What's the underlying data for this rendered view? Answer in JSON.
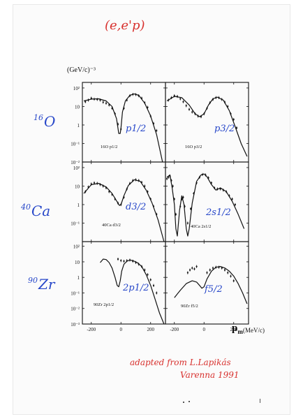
{
  "annotations": {
    "title": "(e,e'p)",
    "y_units": "(GeV/c)⁻³",
    "x_units": "(MeV/c)",
    "pm_label": "p",
    "pm_sub": "m",
    "credit_line1": "adapted from L.Lapikás",
    "credit_line2": "Varenna 1991",
    "nuclei": [
      {
        "mass": "16",
        "symbol": "O"
      },
      {
        "mass": "40",
        "symbol": "Ca"
      },
      {
        "mass": "90",
        "symbol": "Zr"
      }
    ],
    "colors": {
      "red": "#d8322f",
      "blue": "#2747c9",
      "ink": "#111111"
    }
  },
  "chart_data": [
    {
      "type": "line",
      "panel": "row1-left",
      "state_label": "16O p1/2",
      "hand_label": "p1/2",
      "yscale": "log",
      "ylim_exp": [
        -2,
        2
      ],
      "ytick_labels": [
        "10²",
        "10",
        "1",
        "10⁻¹",
        "10⁻²"
      ],
      "xlim": [
        -260,
        300
      ],
      "xticks": [
        -200,
        0,
        200
      ],
      "xtick_labels": [],
      "curve": {
        "x": [
          -250,
          -200,
          -150,
          -100,
          -60,
          -30,
          -15,
          -5,
          0,
          10,
          30,
          60,
          90,
          120,
          160,
          200,
          240,
          280
        ],
        "y": [
          20,
          25,
          26,
          20,
          10,
          2.2,
          0.35,
          0.35,
          0.7,
          5,
          20,
          40,
          48,
          40,
          15,
          3,
          0.3,
          0.01
        ]
      },
      "points": {
        "x": [
          -240,
          -220,
          -200,
          -180,
          -160,
          -140,
          -120,
          -100,
          -80,
          -60,
          -40,
          -20,
          0,
          20,
          40,
          60,
          80,
          100,
          120,
          140,
          160,
          180,
          200,
          220,
          240
        ],
        "y": [
          18,
          22,
          28,
          25,
          24,
          22,
          17,
          15,
          12,
          8,
          4,
          1.1,
          0.6,
          8,
          22,
          38,
          45,
          44,
          38,
          28,
          16,
          9,
          3,
          1.2,
          0.5
        ]
      }
    },
    {
      "type": "line",
      "panel": "row1-right",
      "state_label": "16O p3/2",
      "hand_label": "p3/2",
      "yscale": "log",
      "ylim_exp": [
        -2,
        2
      ],
      "ytick_labels": [],
      "xlim": [
        -260,
        300
      ],
      "xticks": [
        -200,
        0,
        200
      ],
      "xtick_labels": [],
      "curve": {
        "x": [
          -250,
          -200,
          -150,
          -100,
          -60,
          -30,
          0,
          30,
          60,
          90,
          130,
          170,
          210,
          250,
          290
        ],
        "y": [
          20,
          35,
          30,
          12,
          4,
          2.8,
          4,
          12,
          26,
          32,
          22,
          6,
          0.8,
          0.1,
          0.02
        ]
      },
      "points": {
        "x": [
          -240,
          -220,
          -200,
          -180,
          -160,
          -140,
          -120,
          -100,
          -80,
          -60,
          -40,
          -20,
          0,
          20,
          40,
          60,
          80,
          100,
          120,
          140,
          160,
          180,
          200,
          220
        ],
        "y": [
          22,
          30,
          38,
          35,
          26,
          18,
          11,
          7,
          5,
          4,
          3,
          2.8,
          4,
          8,
          16,
          24,
          30,
          30,
          24,
          17,
          10,
          4,
          2,
          0.7
        ]
      }
    },
    {
      "type": "line",
      "panel": "row2-left",
      "state_label": "40Ca d3/2",
      "hand_label": "d3/2",
      "yscale": "log",
      "ylim_exp": [
        -2,
        2
      ],
      "ytick_labels": [
        "10²",
        "10",
        "1",
        "10⁻¹"
      ],
      "xlim": [
        -260,
        300
      ],
      "xticks": [
        -200,
        0,
        200
      ],
      "xtick_labels": [],
      "curve": {
        "x": [
          -250,
          -200,
          -150,
          -100,
          -60,
          -30,
          -10,
          0,
          20,
          50,
          90,
          130,
          170,
          210,
          250,
          290
        ],
        "y": [
          4,
          12,
          14,
          9,
          4,
          1.6,
          0.9,
          1,
          3,
          11,
          22,
          18,
          6,
          1.2,
          0.15,
          0.01
        ]
      },
      "points": {
        "x": [
          -240,
          -220,
          -200,
          -180,
          -160,
          -140,
          -120,
          -100,
          -80,
          -60,
          -40,
          -20,
          0,
          20,
          40,
          60,
          80,
          100,
          120,
          140,
          160,
          180,
          200,
          220,
          240
        ],
        "y": [
          5,
          9,
          13,
          15,
          14,
          12,
          10,
          8,
          5,
          3.5,
          2,
          1.2,
          1,
          2.5,
          7,
          14,
          20,
          22,
          20,
          16,
          10,
          5,
          2,
          0.8,
          0.3
        ]
      }
    },
    {
      "type": "line",
      "panel": "row2-right",
      "state_label": "40Ca 2s1/2",
      "hand_label": "2s1/2",
      "yscale": "log",
      "ylim_exp": [
        -2,
        2
      ],
      "ytick_labels": [],
      "xlim": [
        -260,
        300
      ],
      "xticks": [
        -200,
        0,
        200
      ],
      "xtick_labels": [],
      "curve": {
        "x": [
          -250,
          -230,
          -215,
          -200,
          -190,
          -180,
          -165,
          -150,
          -135,
          -120,
          -110,
          -100,
          -80,
          -50,
          -20,
          0,
          20,
          50,
          80,
          110,
          150,
          190,
          230,
          270
        ],
        "y": [
          30,
          40,
          8,
          1,
          0.05,
          0.02,
          0.5,
          3,
          1,
          0.05,
          0.02,
          0.05,
          1.2,
          18,
          40,
          45,
          32,
          12,
          6,
          8,
          5,
          1.5,
          0.3,
          0.05
        ]
      },
      "points": {
        "x": [
          -250,
          -240,
          -230,
          -220,
          -210,
          -200,
          -190,
          -160,
          -150,
          -140,
          -130,
          -110,
          -90,
          -70,
          -50,
          -30,
          -10,
          10,
          30,
          50,
          70,
          90,
          110,
          130,
          150,
          170,
          190,
          210
        ],
        "y": [
          25,
          30,
          35,
          20,
          10,
          2,
          0.3,
          0.8,
          2,
          2.5,
          0.8,
          0.1,
          0.6,
          4,
          15,
          30,
          42,
          40,
          28,
          15,
          8,
          7,
          7,
          6,
          5,
          3,
          2,
          1
        ]
      }
    },
    {
      "type": "line",
      "panel": "row3-left",
      "state_label": "90Zr 2p1/2",
      "hand_label": "2p1/2",
      "yscale": "log",
      "ylim_exp": [
        -3,
        2
      ],
      "ytick_labels": [
        "10²",
        "10",
        "1",
        "10⁻¹",
        "10⁻²",
        "10⁻³"
      ],
      "xlim": [
        -260,
        300
      ],
      "xticks": [
        -200,
        0,
        200
      ],
      "xtick_labels": [
        "-200",
        "0",
        "200"
      ],
      "curve": {
        "x": [
          -140,
          -120,
          -100,
          -80,
          -60,
          -40,
          -25,
          -15,
          -5,
          5,
          20,
          40,
          60,
          80,
          110,
          140,
          170,
          200,
          230,
          260,
          290
        ],
        "y": [
          9,
          15,
          14,
          9,
          4,
          1,
          0.3,
          0.25,
          0.6,
          2.5,
          7,
          11,
          13,
          12,
          9,
          5,
          1.5,
          0.3,
          0.04,
          0.005,
          0.001
        ]
      },
      "points": {
        "x": [
          -20,
          0,
          20,
          40,
          60,
          80,
          100,
          120,
          140,
          160,
          180,
          200,
          220,
          240
        ],
        "y": [
          15,
          12,
          11,
          12,
          13,
          11,
          9,
          7,
          5,
          3,
          1.5,
          0.7,
          0.3,
          0.1
        ]
      }
    },
    {
      "type": "line",
      "panel": "row3-right",
      "state_label": "90Zr f5/2",
      "hand_label": "f5/2",
      "yscale": "log",
      "ylim_exp": [
        -3,
        2
      ],
      "ytick_labels": [],
      "xlim": [
        -260,
        300
      ],
      "xticks": [
        -200,
        0,
        200
      ],
      "xtick_labels": [
        "-200",
        "0",
        "200"
      ],
      "curve": {
        "x": [
          -200,
          -160,
          -120,
          -80,
          -50,
          -30,
          -15,
          0,
          20,
          50,
          80,
          110,
          140,
          170,
          200,
          230,
          260,
          290
        ],
        "y": [
          0.05,
          0.15,
          0.4,
          0.6,
          0.5,
          0.3,
          0.2,
          0.25,
          0.8,
          2.5,
          4.5,
          5,
          4,
          2.5,
          1.2,
          0.4,
          0.1,
          0.02
        ]
      },
      "points": {
        "x": [
          -110,
          -95,
          -80,
          -65,
          -50,
          20,
          40,
          60,
          80,
          100,
          120,
          140,
          160,
          180,
          200
        ],
        "y": [
          2,
          3,
          4,
          3.5,
          5,
          2,
          3,
          4,
          4.5,
          4.5,
          4,
          3,
          2,
          1.2,
          0.6
        ]
      }
    }
  ]
}
